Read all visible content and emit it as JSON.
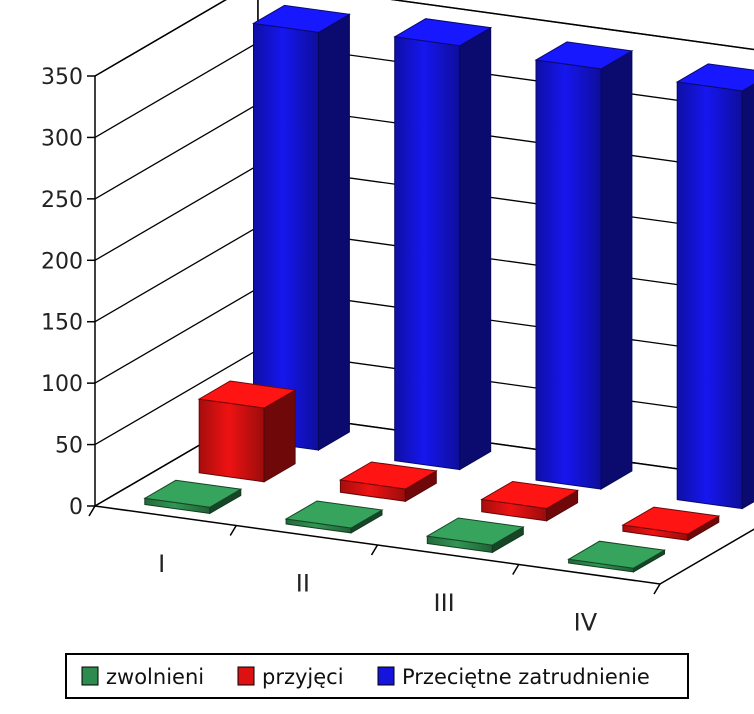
{
  "chart_data": {
    "type": "bar",
    "variant": "3d-column",
    "categories": [
      "I",
      "II",
      "III",
      "IV"
    ],
    "series": [
      {
        "name": "zwolnieni",
        "color": "#2e8b4e",
        "values": [
          5,
          4,
          6,
          3
        ]
      },
      {
        "name": "przyjęci",
        "color": "#dd1111",
        "values": [
          60,
          10,
          10,
          5
        ]
      },
      {
        "name": "Przeciętne zatrudnienie",
        "color": "#1414dd",
        "values": [
          340,
          345,
          342,
          340
        ]
      }
    ],
    "y_ticks": [
      "0",
      "50",
      "100",
      "150",
      "200",
      "250",
      "300",
      "350"
    ],
    "ylim": [
      0,
      350
    ],
    "grid": true,
    "legend_position": "bottom"
  }
}
